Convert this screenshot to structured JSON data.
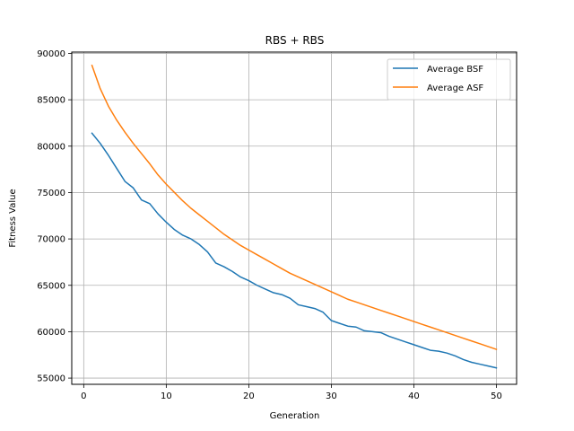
{
  "chart_data": {
    "type": "line",
    "title": "RBS + RBS",
    "xlabel": "Generation",
    "ylabel": "Fitness Value",
    "xlim": [
      -1.45,
      52.45
    ],
    "ylim": [
      54330,
      90140
    ],
    "xticks": [
      0,
      10,
      20,
      30,
      40,
      50
    ],
    "yticks": [
      55000,
      60000,
      65000,
      70000,
      75000,
      80000,
      85000,
      90000
    ],
    "grid": true,
    "legend_position": "top-right",
    "series": [
      {
        "name": "Average BSF",
        "color": "#1f77b4",
        "x": [
          1,
          2,
          3,
          4,
          5,
          6,
          7,
          8,
          9,
          10,
          11,
          12,
          13,
          14,
          15,
          16,
          17,
          18,
          19,
          20,
          21,
          22,
          23,
          24,
          25,
          26,
          27,
          28,
          29,
          30,
          31,
          32,
          33,
          34,
          35,
          36,
          37,
          38,
          39,
          40,
          41,
          42,
          43,
          44,
          45,
          46,
          47,
          48,
          49,
          50
        ],
        "values": [
          81400,
          80300,
          79000,
          77600,
          76200,
          75500,
          74200,
          73800,
          72700,
          71800,
          71000,
          70400,
          70000,
          69400,
          68600,
          67400,
          67000,
          66500,
          65900,
          65500,
          65000,
          64600,
          64200,
          64000,
          63600,
          62900,
          62700,
          62500,
          62100,
          61200,
          60900,
          60600,
          60500,
          60100,
          60000,
          59900,
          59500,
          59200,
          58900,
          58600,
          58300,
          58000,
          57900,
          57700,
          57400,
          57000,
          56700,
          56500,
          56300,
          56100
        ]
      },
      {
        "name": "Average ASF",
        "color": "#ff7f0e",
        "x": [
          1,
          2,
          3,
          4,
          5,
          6,
          7,
          8,
          9,
          10,
          11,
          12,
          13,
          14,
          15,
          16,
          17,
          18,
          19,
          20,
          21,
          22,
          23,
          24,
          25,
          26,
          27,
          28,
          29,
          30,
          31,
          32,
          33,
          34,
          35,
          36,
          37,
          38,
          39,
          40,
          41,
          42,
          43,
          44,
          45,
          46,
          47,
          48,
          49,
          50
        ],
        "values": [
          88700,
          86200,
          84300,
          82800,
          81500,
          80300,
          79200,
          78100,
          76900,
          75900,
          75000,
          74100,
          73300,
          72600,
          71900,
          71200,
          70500,
          69900,
          69300,
          68800,
          68300,
          67800,
          67300,
          66800,
          66300,
          65900,
          65500,
          65100,
          64700,
          64300,
          63900,
          63500,
          63200,
          62900,
          62600,
          62300,
          62000,
          61700,
          61400,
          61100,
          60800,
          60500,
          60200,
          59900,
          59600,
          59300,
          59000,
          58700,
          58400,
          58100
        ]
      }
    ]
  }
}
